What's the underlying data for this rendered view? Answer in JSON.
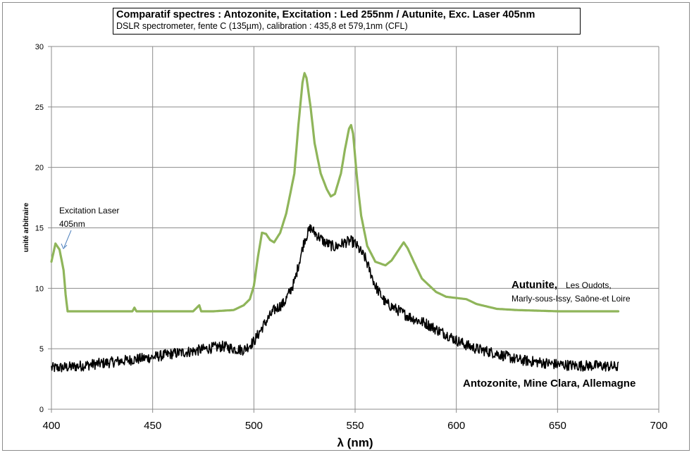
{
  "chart_data": {
    "type": "line",
    "title": "Comparatif spectres : Antozonite, Excitation : Led 255nm / Autunite, Exc. Laser 405nm",
    "subtitle": "DSLR spectrometer, fente C (135µm), calibration : 435,8 et 579,1nm (CFL)",
    "xlabel": "λ (nm)",
    "ylabel": "unité arbitraire",
    "xlim": [
      400,
      700
    ],
    "ylim": [
      0,
      30
    ],
    "x_ticks": [
      "400",
      "450",
      "500",
      "550",
      "600",
      "650",
      "700"
    ],
    "y_ticks": [
      "0",
      "5",
      "10",
      "15",
      "20",
      "25",
      "30"
    ],
    "grid": true,
    "legend": "none",
    "series": [
      {
        "name": "Autunite",
        "color": "#8fb55a",
        "x": [
          400,
          402,
          404,
          406,
          407,
          408,
          410,
          420,
          440,
          441,
          442,
          450,
          470,
          473,
          474,
          480,
          490,
          495,
          498,
          500,
          502,
          504,
          506,
          508,
          510,
          513,
          516,
          520,
          522,
          524,
          525,
          526,
          528,
          530,
          533,
          536,
          538,
          540,
          543,
          545,
          547,
          548,
          549,
          551,
          553,
          556,
          560,
          565,
          568,
          572,
          574,
          576,
          579,
          583,
          590,
          595,
          600,
          605,
          610,
          620,
          630,
          650,
          670,
          680
        ],
        "y": [
          12.2,
          13.7,
          13.2,
          11.5,
          9.5,
          8.1,
          8.1,
          8.1,
          8.1,
          8.4,
          8.1,
          8.1,
          8.1,
          8.6,
          8.1,
          8.1,
          8.2,
          8.6,
          9.1,
          10.2,
          12.6,
          14.6,
          14.5,
          14.0,
          13.8,
          14.6,
          16.2,
          19.5,
          23.5,
          27.0,
          27.8,
          27.4,
          25.0,
          22.0,
          19.5,
          18.2,
          17.6,
          17.8,
          19.5,
          21.5,
          23.2,
          23.5,
          22.8,
          19.0,
          16.0,
          13.5,
          12.2,
          11.9,
          12.3,
          13.3,
          13.8,
          13.3,
          12.2,
          10.8,
          9.7,
          9.3,
          9.2,
          9.1,
          8.7,
          8.3,
          8.2,
          8.1,
          8.1,
          8.1
        ]
      },
      {
        "name": "Antozonite",
        "color": "#000000",
        "x": [
          400,
          410,
          420,
          430,
          440,
          450,
          460,
          470,
          480,
          485,
          490,
          495,
          500,
          505,
          510,
          515,
          520,
          525,
          528,
          530,
          535,
          540,
          545,
          548,
          550,
          555,
          560,
          565,
          570,
          575,
          580,
          585,
          590,
          595,
          600,
          605,
          610,
          620,
          630,
          640,
          650,
          660,
          670,
          680
        ],
        "y": [
          3.4,
          3.5,
          3.7,
          3.9,
          4.1,
          4.3,
          4.6,
          4.8,
          5.1,
          5.2,
          5.0,
          4.9,
          5.6,
          7.0,
          8.2,
          8.8,
          10.5,
          14.0,
          15.0,
          14.6,
          13.8,
          13.4,
          13.8,
          13.9,
          13.7,
          12.5,
          10.2,
          8.8,
          8.3,
          7.8,
          7.4,
          7.1,
          6.6,
          6.2,
          5.7,
          5.3,
          5.0,
          4.6,
          4.1,
          3.9,
          3.7,
          3.6,
          3.6,
          3.5
        ]
      }
    ],
    "annotations": {
      "laser_line1": "Excitation Laser",
      "laser_line2": "405nm",
      "autunite_bold": "Autunite,",
      "autunite_rest1": "Les Oudots,",
      "autunite_rest2": "Marly-sous-Issy, Saône-et Loire",
      "antozonite": "Antozonite, Mine Clara, Allemagne"
    }
  }
}
